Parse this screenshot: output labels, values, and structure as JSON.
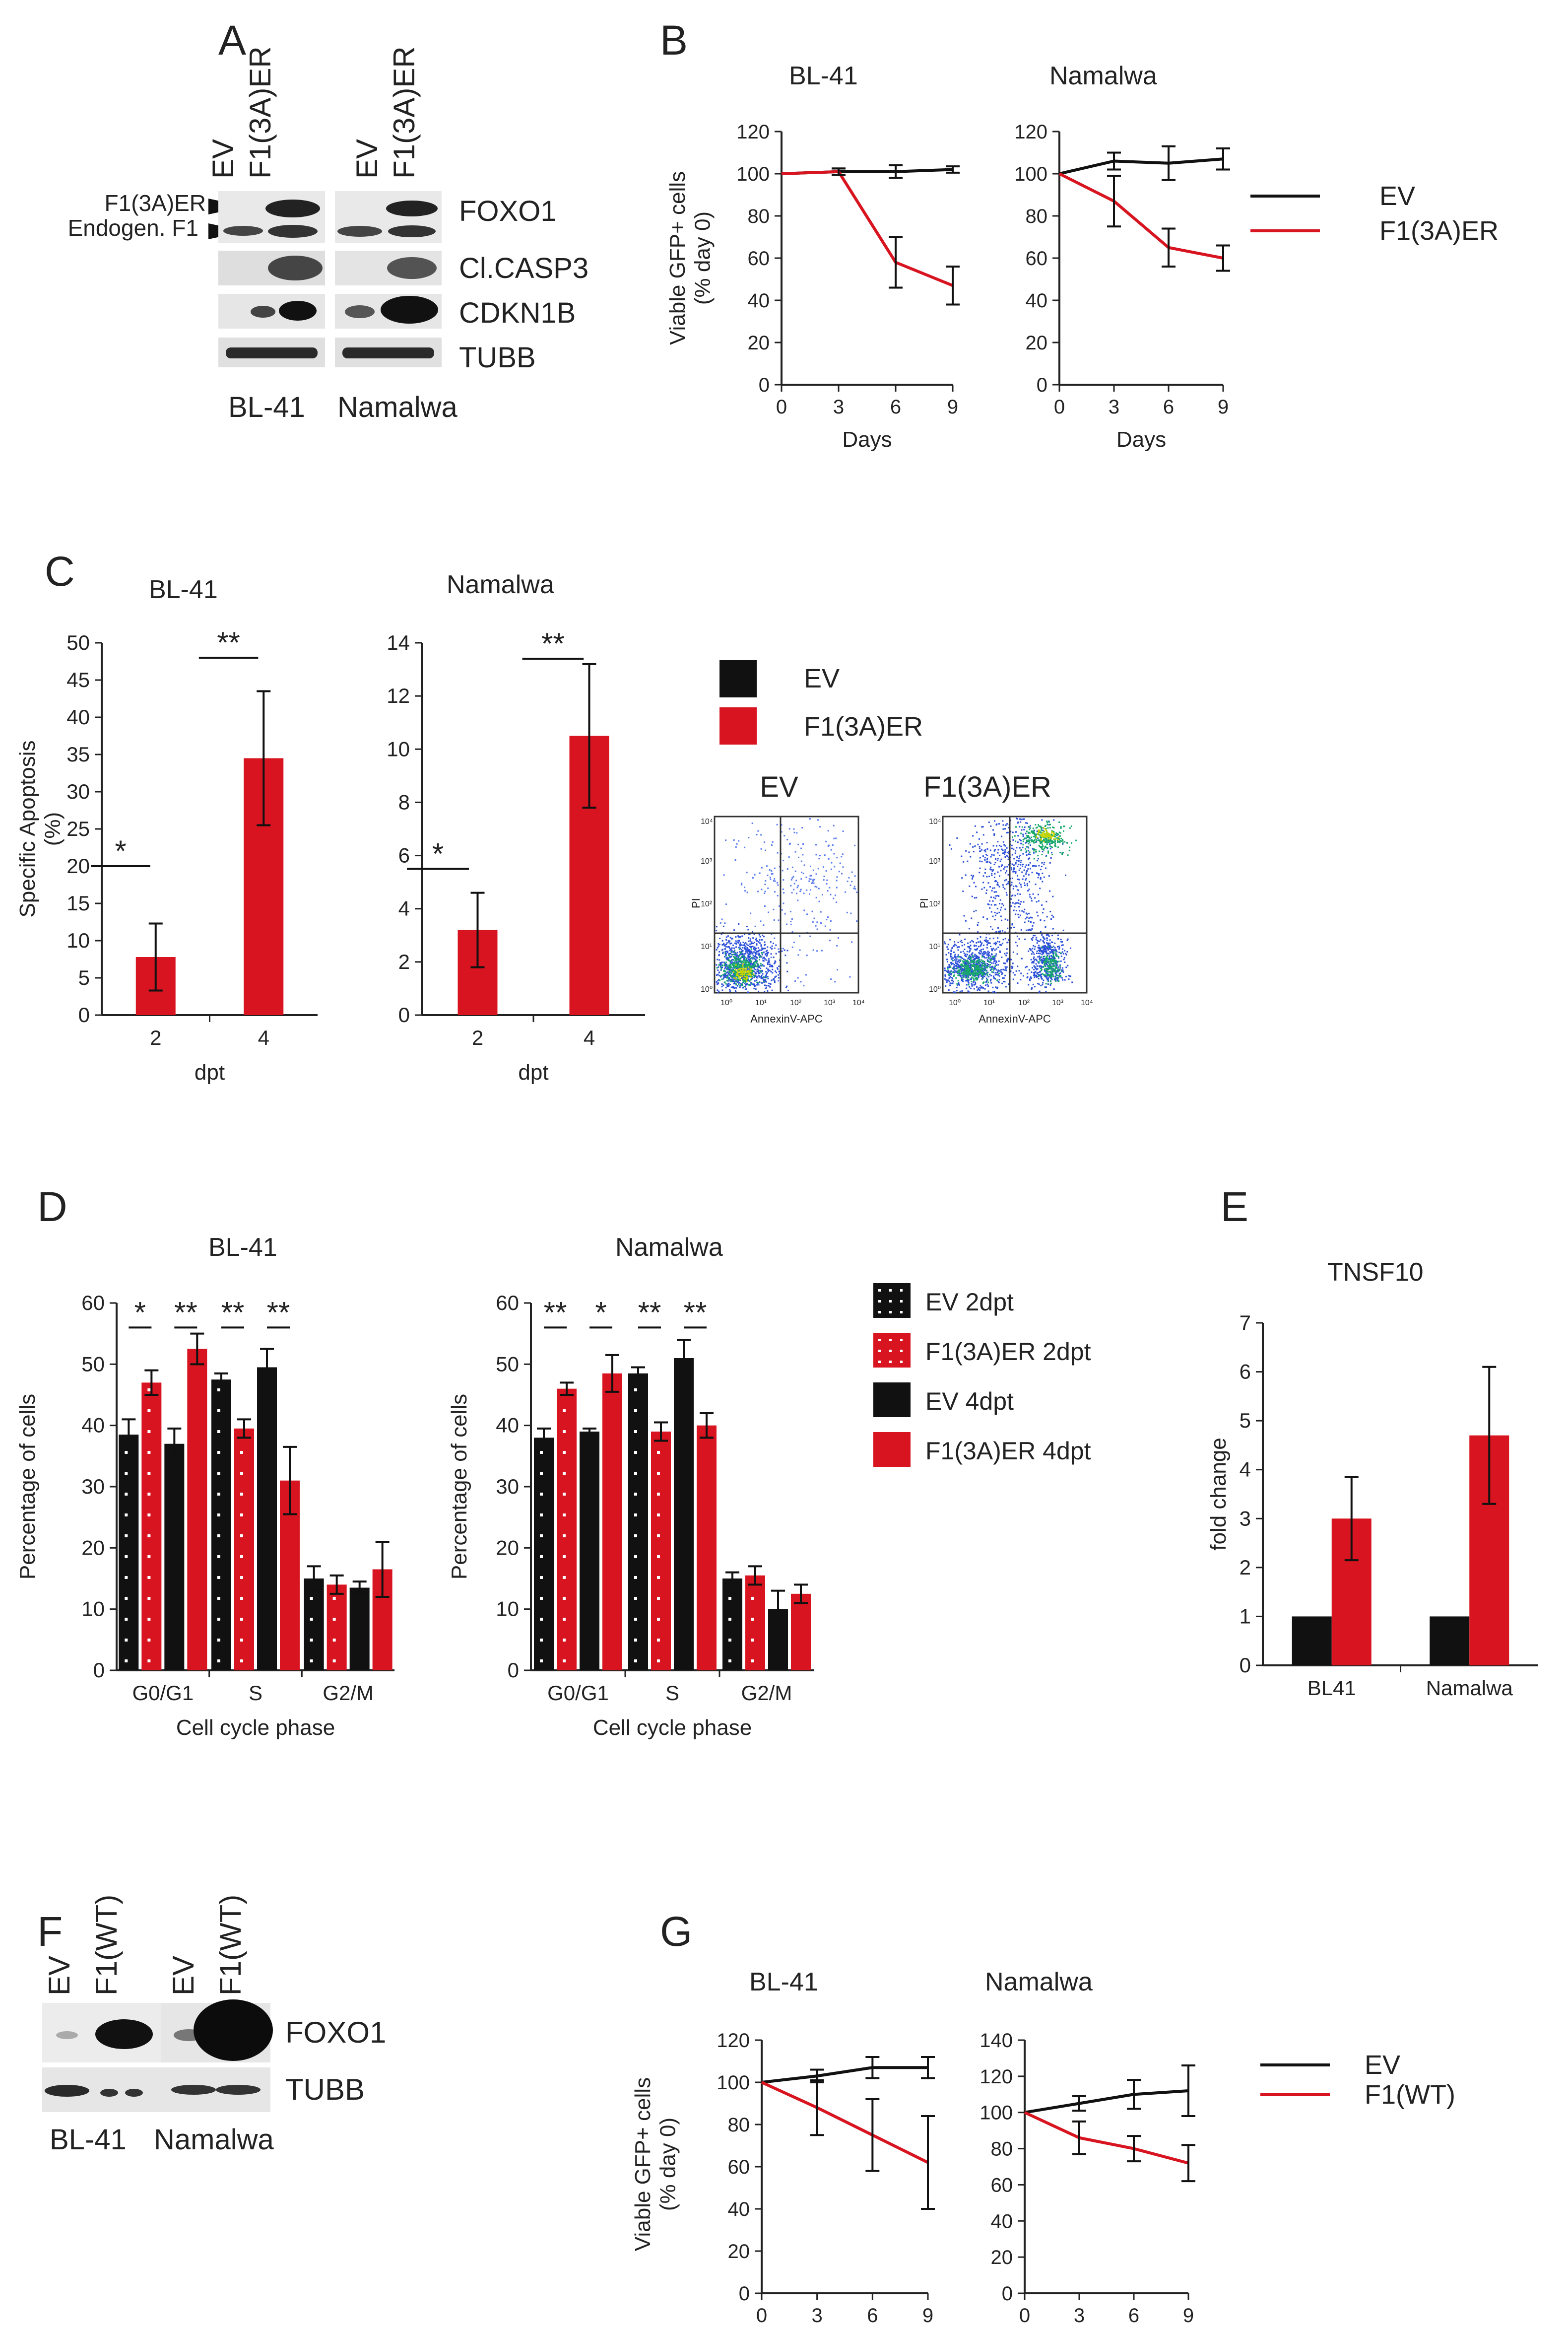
{
  "colors": {
    "ev": "#111111",
    "f1": "#d7141f",
    "axis": "#222222",
    "blot_bg": "#e6e6e6",
    "band": "#333333"
  },
  "panels": {
    "A": {
      "letter": "A",
      "lanes": [
        "EV",
        "F1(3A)ER",
        "EV",
        "F1(3A)ER"
      ],
      "markers": [
        "F1(3A)ER",
        "Endogen. F1"
      ],
      "rows": [
        "FOXO1",
        "Cl.CASP3",
        "CDKN1B",
        "TUBB"
      ],
      "cells": [
        "BL-41",
        "Namalwa"
      ]
    },
    "B": {
      "letter": "B",
      "legend": [
        "EV",
        "F1(3A)ER"
      ]
    },
    "C": {
      "letter": "C",
      "legend": [
        "EV",
        "F1(3A)ER"
      ],
      "flow": [
        {
          "title": "EV",
          "xlabel": "AnnexinV-APC",
          "ylabel": "PI",
          "ticks": [
            "10⁰",
            "10¹",
            "10²",
            "10³",
            "10⁴"
          ]
        },
        {
          "title": "F1(3A)ER",
          "xlabel": "AnnexinV-APC",
          "ylabel": "PI",
          "ticks": [
            "10⁰",
            "10¹",
            "10²",
            "10³",
            "10⁴"
          ]
        }
      ]
    },
    "D": {
      "letter": "D",
      "legend": [
        "EV 2dpt",
        "F1(3A)ER 2dpt",
        "EV 4dpt",
        "F1(3A)ER 4dpt"
      ]
    },
    "E": {
      "letter": "E"
    },
    "F": {
      "letter": "F",
      "lanes": [
        "EV",
        "F1(WT)",
        "EV",
        "F1(WT)"
      ],
      "rows": [
        "FOXO1",
        "TUBB"
      ],
      "cells": [
        "BL-41",
        "Namalwa"
      ]
    },
    "G": {
      "letter": "G",
      "legend": [
        "EV",
        "F1(WT)"
      ]
    }
  },
  "chart_data": [
    {
      "id": "B-BL41",
      "type": "line",
      "title": "BL-41",
      "xlabel": "Days",
      "ylabel": "Viable GFP+ cells (% day 0)",
      "x": [
        0,
        3,
        6,
        9
      ],
      "xlim": [
        0,
        9
      ],
      "ylim": [
        0,
        120
      ],
      "yticks": [
        0,
        20,
        40,
        60,
        80,
        100,
        120
      ],
      "series": [
        {
          "name": "EV",
          "values": [
            100,
            101,
            101,
            102
          ],
          "errors": [
            0,
            1.5,
            3,
            1.5
          ]
        },
        {
          "name": "F1(3A)ER",
          "values": [
            100,
            101,
            58,
            47
          ],
          "errors": [
            0,
            1.5,
            12,
            9
          ]
        }
      ]
    },
    {
      "id": "B-Namalwa",
      "type": "line",
      "title": "Namalwa",
      "xlabel": "Days",
      "ylabel": "",
      "x": [
        0,
        3,
        6,
        9
      ],
      "xlim": [
        0,
        9
      ],
      "ylim": [
        0,
        120
      ],
      "yticks": [
        0,
        20,
        40,
        60,
        80,
        100,
        120
      ],
      "series": [
        {
          "name": "EV",
          "values": [
            100,
            106,
            105,
            107
          ],
          "errors": [
            0,
            4,
            8,
            5
          ]
        },
        {
          "name": "F1(3A)ER",
          "values": [
            100,
            87,
            65,
            60
          ],
          "errors": [
            0,
            12,
            9,
            6
          ]
        }
      ]
    },
    {
      "id": "C-BL41",
      "type": "bar",
      "title": "BL-41",
      "xlabel": "dpt",
      "ylabel": "Specific Apoptosis (%)",
      "categories": [
        "2",
        "4"
      ],
      "ylim": [
        0,
        50
      ],
      "yticks": [
        0,
        5,
        10,
        15,
        20,
        25,
        30,
        35,
        40,
        45,
        50
      ],
      "series": [
        {
          "name": "F1(3A)ER",
          "values": [
            7.8,
            34.5
          ],
          "errors": [
            4.5,
            9
          ]
        }
      ],
      "significance": [
        {
          "group": 0,
          "label": "*",
          "y": 20
        },
        {
          "group": 1,
          "label": "**",
          "y": 48
        }
      ]
    },
    {
      "id": "C-Namalwa",
      "type": "bar",
      "title": "Namalwa",
      "xlabel": "dpt",
      "ylabel": "",
      "categories": [
        "2",
        "4"
      ],
      "ylim": [
        0,
        14
      ],
      "yticks": [
        0,
        2,
        4,
        6,
        8,
        10,
        12,
        14
      ],
      "series": [
        {
          "name": "F1(3A)ER",
          "values": [
            3.2,
            10.5
          ],
          "errors": [
            1.4,
            2.7
          ]
        }
      ],
      "significance": [
        {
          "group": 0,
          "label": "*",
          "y": 5.5
        },
        {
          "group": 1,
          "label": "**",
          "y": 13.4
        }
      ]
    },
    {
      "id": "D-BL41",
      "type": "bar",
      "title": "BL-41",
      "xlabel": "Cell cycle phase",
      "ylabel": "Percentage of cells",
      "categories": [
        "G0/G1",
        "S",
        "G2/M"
      ],
      "ylim": [
        0,
        60
      ],
      "yticks": [
        0,
        10,
        20,
        30,
        40,
        50,
        60
      ],
      "series": [
        {
          "name": "EV 2dpt",
          "values": [
            38.5,
            47.5,
            15
          ],
          "errors": [
            2.5,
            1,
            2
          ]
        },
        {
          "name": "F1(3A)ER 2dpt",
          "values": [
            47,
            39.5,
            14
          ],
          "errors": [
            2,
            1.5,
            1.5
          ]
        },
        {
          "name": "EV 4dpt",
          "values": [
            37,
            49.5,
            13.5
          ],
          "errors": [
            2.5,
            3,
            1
          ]
        },
        {
          "name": "F1(3A)ER 4dpt",
          "values": [
            52.5,
            31,
            16.5
          ],
          "errors": [
            2.5,
            5.5,
            4.5
          ]
        }
      ],
      "significance": [
        {
          "label": "*",
          "from": 0,
          "to": 1,
          "y": 56,
          "cat": 0
        },
        {
          "label": "**",
          "from": 2,
          "to": 3,
          "y": 56,
          "cat": 0
        },
        {
          "label": "**",
          "from": 0,
          "to": 1,
          "y": 56,
          "cat": 1
        },
        {
          "label": "**",
          "from": 2,
          "to": 3,
          "y": 56,
          "cat": 1
        }
      ]
    },
    {
      "id": "D-Namalwa",
      "type": "bar",
      "title": "Namalwa",
      "xlabel": "Cell cycle phase",
      "ylabel": "Percentage of cells",
      "categories": [
        "G0/G1",
        "S",
        "G2/M"
      ],
      "ylim": [
        0,
        60
      ],
      "yticks": [
        0,
        10,
        20,
        30,
        40,
        50,
        60
      ],
      "series": [
        {
          "name": "EV 2dpt",
          "values": [
            38,
            48.5,
            15
          ],
          "errors": [
            1.5,
            1,
            1
          ]
        },
        {
          "name": "F1(3A)ER 2dpt",
          "values": [
            46,
            39,
            15.5
          ],
          "errors": [
            1,
            1.5,
            1.5
          ]
        },
        {
          "name": "EV 4dpt",
          "values": [
            39,
            51,
            10
          ],
          "errors": [
            0.5,
            3,
            3
          ]
        },
        {
          "name": "F1(3A)ER 4dpt",
          "values": [
            48.5,
            40,
            12.5
          ],
          "errors": [
            3,
            2,
            1.5
          ]
        }
      ],
      "significance": [
        {
          "label": "**",
          "from": 0,
          "to": 1,
          "y": 56,
          "cat": 0
        },
        {
          "label": "*",
          "from": 2,
          "to": 3,
          "y": 56,
          "cat": 0
        },
        {
          "label": "**",
          "from": 0,
          "to": 1,
          "y": 56,
          "cat": 1
        },
        {
          "label": "**",
          "from": 2,
          "to": 3,
          "y": 56,
          "cat": 1
        }
      ]
    },
    {
      "id": "E-TNSF10",
      "type": "bar",
      "title": "TNSF10",
      "xlabel": "",
      "ylabel": "fold change",
      "categories": [
        "BL41",
        "Namalwa"
      ],
      "ylim": [
        0,
        7
      ],
      "yticks": [
        0,
        1,
        2,
        3,
        4,
        5,
        6,
        7
      ],
      "series": [
        {
          "name": "EV",
          "values": [
            1,
            1
          ],
          "errors": [
            0,
            0
          ]
        },
        {
          "name": "F1(3A)ER",
          "values": [
            3,
            4.7
          ],
          "errors": [
            0.85,
            1.4
          ]
        }
      ]
    },
    {
      "id": "G-BL41",
      "type": "line",
      "title": "BL-41",
      "xlabel": "Days",
      "ylabel": "Viable GFP+ cells (% day 0)",
      "x": [
        0,
        3,
        6,
        9
      ],
      "xlim": [
        0,
        9
      ],
      "ylim": [
        0,
        120
      ],
      "yticks": [
        0,
        20,
        40,
        60,
        80,
        100,
        120
      ],
      "series": [
        {
          "name": "EV",
          "values": [
            100,
            103,
            107,
            107
          ],
          "errors": [
            0,
            3,
            5,
            5
          ]
        },
        {
          "name": "F1(WT)",
          "values": [
            100,
            88,
            75,
            62
          ],
          "errors": [
            0,
            13,
            17,
            22
          ]
        }
      ]
    },
    {
      "id": "G-Namalwa",
      "type": "line",
      "title": "Namalwa",
      "xlabel": "Days",
      "ylabel": "",
      "x": [
        0,
        3,
        6,
        9
      ],
      "xlim": [
        0,
        9
      ],
      "ylim": [
        0,
        140
      ],
      "yticks": [
        0,
        20,
        40,
        60,
        80,
        100,
        120,
        140
      ],
      "series": [
        {
          "name": "EV",
          "values": [
            100,
            105,
            110,
            112
          ],
          "errors": [
            0,
            4,
            8,
            14
          ]
        },
        {
          "name": "F1(WT)",
          "values": [
            100,
            86,
            80,
            72
          ],
          "errors": [
            0,
            9,
            7,
            10
          ]
        }
      ]
    }
  ]
}
